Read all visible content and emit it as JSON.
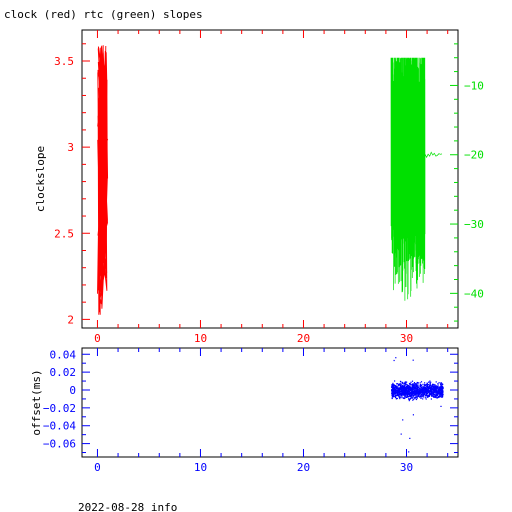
{
  "header": {
    "title": "clock (red) rtc (green) slopes"
  },
  "footer": {
    "caption": "2022-08-28 info"
  },
  "colors": {
    "clock": "#ff0000",
    "rtc": "#00e000",
    "offset": "#0000ff",
    "axis": "#000000"
  },
  "chart_data": [
    {
      "type": "line",
      "title": "clock (red) rtc (green) slopes",
      "ylabel": "clockslope",
      "xlim": [
        -1.5,
        35
      ],
      "ylim": [
        1.95,
        3.68
      ],
      "y2lim": [
        -45,
        -2
      ],
      "xticks": [
        0,
        10,
        20,
        30
      ],
      "yticks": [
        2,
        2.5,
        3,
        3.5
      ],
      "yticklabels": [
        "2",
        "2.5",
        "3",
        "3.5"
      ],
      "y2ticks": [
        -40,
        -30,
        -20,
        -10
      ],
      "y2ticklabels": [
        "-40",
        "-30",
        "-20",
        "-10"
      ],
      "series": [
        {
          "axis": "left",
          "x_range": [
            0.0,
            1.0
          ],
          "y_range": [
            2.02,
            3.61
          ],
          "steady_value": 2.8
        },
        {
          "axis": "right",
          "x_range": [
            28.5,
            33.5
          ],
          "y_range": [
            -42,
            -6
          ],
          "steady_value": -20
        }
      ]
    },
    {
      "type": "scatter",
      "ylabel": "offset(ms)",
      "xlim": [
        -1.5,
        35
      ],
      "ylim": [
        -0.075,
        0.047
      ],
      "xticks": [
        0,
        10,
        20,
        30
      ],
      "yticks": [
        0.04,
        0.02,
        0,
        -0.02,
        -0.04,
        -0.06
      ],
      "yticklabels": [
        "0.04",
        "0.02",
        "0",
        "-0.02",
        "-0.04",
        "-0.06"
      ],
      "series": [
        {
          "x_range": [
            28.5,
            33.5
          ],
          "y_center": 0.0,
          "y_spread": 0.012,
          "outlier_min": -0.07,
          "outlier_max": 0.04
        }
      ]
    }
  ]
}
